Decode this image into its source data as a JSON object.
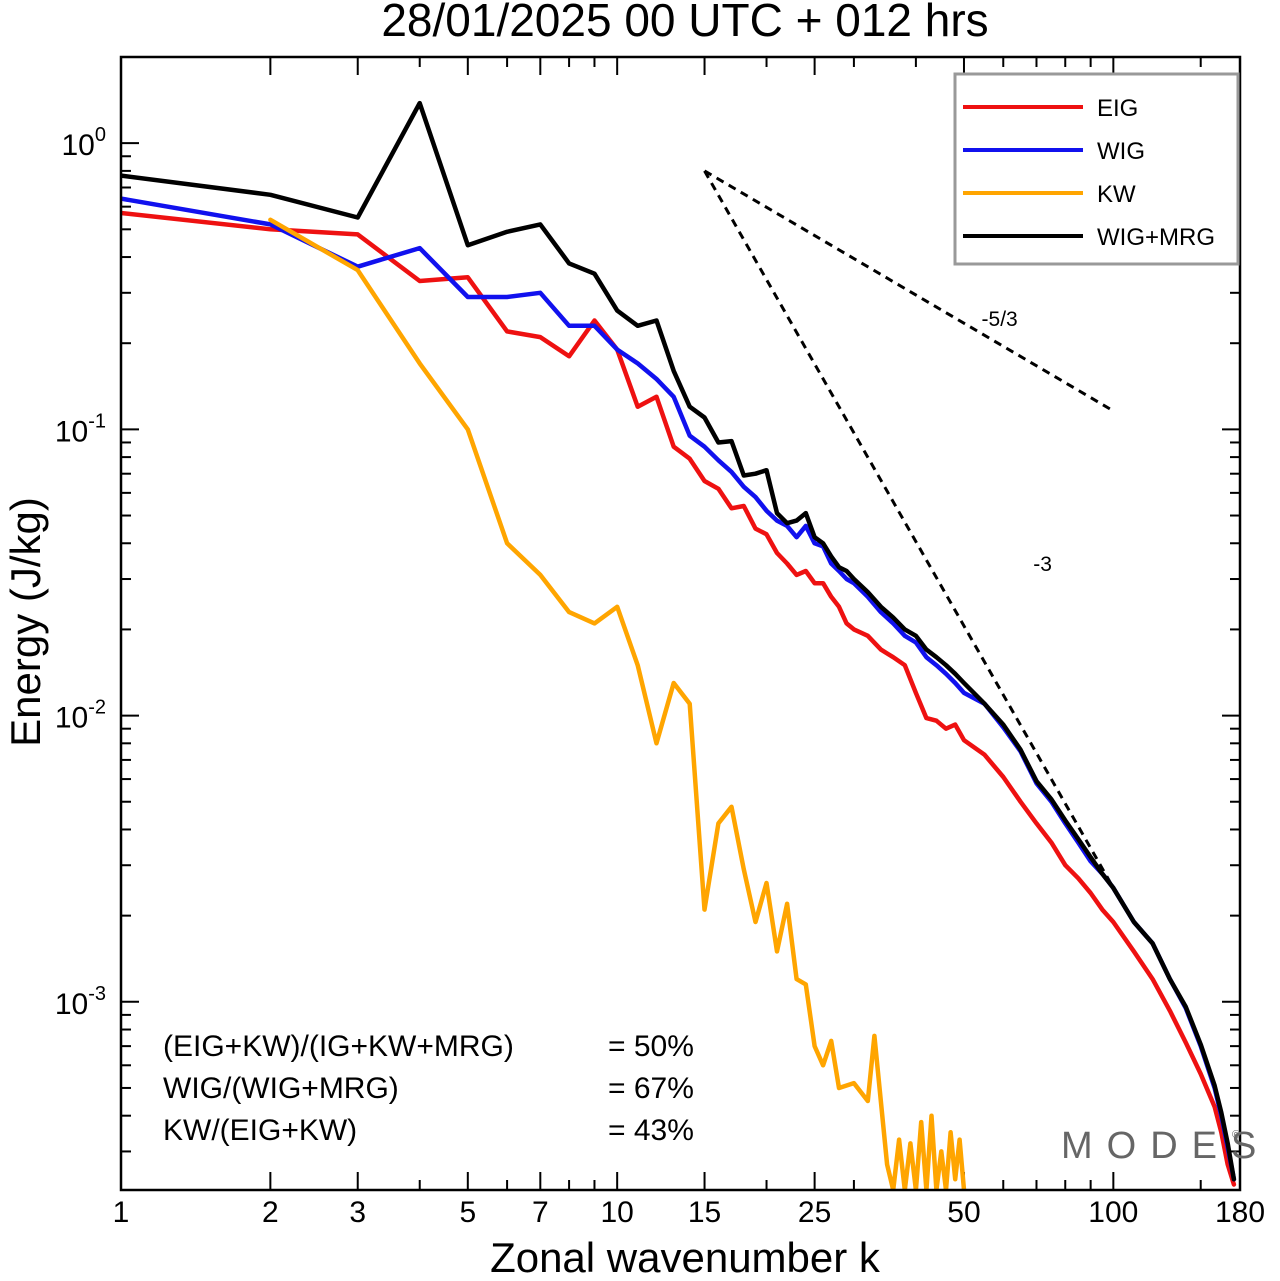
{
  "title": "28/01/2025  00 UTC  + 012 hrs",
  "watermark": "MODES",
  "watermark_mark": "©",
  "chart_data": {
    "type": "line",
    "x_scale": "log",
    "y_scale": "log",
    "xlabel": "Zonal wavenumber k",
    "ylabel": "Energy (J/kg)",
    "xlim": [
      1,
      180
    ],
    "ylim": [
      0.00022,
      2.0
    ],
    "x_ticks": [
      {
        "value": 1,
        "label": "1"
      },
      {
        "value": 2,
        "label": "2"
      },
      {
        "value": 3,
        "label": "3"
      },
      {
        "value": 5,
        "label": "5"
      },
      {
        "value": 7,
        "label": "7"
      },
      {
        "value": 10,
        "label": "10"
      },
      {
        "value": 15,
        "label": "15"
      },
      {
        "value": 25,
        "label": "25"
      },
      {
        "value": 50,
        "label": "50"
      },
      {
        "value": 100,
        "label": "100"
      },
      {
        "value": 180,
        "label": "180"
      }
    ],
    "y_ticks": [
      {
        "value": 1,
        "base": "10",
        "exp": "0"
      },
      {
        "value": 0.1,
        "base": "10",
        "exp": "-1"
      },
      {
        "value": 0.01,
        "base": "10",
        "exp": "-2"
      },
      {
        "value": 0.001,
        "base": "10",
        "exp": "-3"
      }
    ],
    "legend_position": "top-right",
    "series": [
      {
        "name": "EIG",
        "color": "#ee1111",
        "points": [
          [
            1,
            0.57
          ],
          [
            2,
            0.5
          ],
          [
            3,
            0.48
          ],
          [
            4,
            0.33
          ],
          [
            5,
            0.34
          ],
          [
            6,
            0.22
          ],
          [
            7,
            0.21
          ],
          [
            8,
            0.18
          ],
          [
            9,
            0.24
          ],
          [
            10,
            0.19
          ],
          [
            11,
            0.12
          ],
          [
            12,
            0.13
          ],
          [
            13,
            0.087
          ],
          [
            14,
            0.079
          ],
          [
            15,
            0.066
          ],
          [
            16,
            0.062
          ],
          [
            17,
            0.053
          ],
          [
            18,
            0.054
          ],
          [
            19,
            0.045
          ],
          [
            20,
            0.043
          ],
          [
            21,
            0.037
          ],
          [
            22,
            0.034
          ],
          [
            23,
            0.031
          ],
          [
            24,
            0.032
          ],
          [
            25,
            0.029
          ],
          [
            26,
            0.029
          ],
          [
            27,
            0.026
          ],
          [
            28,
            0.024
          ],
          [
            29,
            0.021
          ],
          [
            30,
            0.02
          ],
          [
            32,
            0.019
          ],
          [
            34,
            0.017
          ],
          [
            36,
            0.016
          ],
          [
            38,
            0.015
          ],
          [
            40,
            0.012
          ],
          [
            42,
            0.0098
          ],
          [
            44,
            0.0096
          ],
          [
            46,
            0.009
          ],
          [
            48,
            0.0093
          ],
          [
            50,
            0.0082
          ],
          [
            55,
            0.0073
          ],
          [
            60,
            0.0061
          ],
          [
            65,
            0.005
          ],
          [
            70,
            0.0042
          ],
          [
            75,
            0.0036
          ],
          [
            80,
            0.003
          ],
          [
            85,
            0.0027
          ],
          [
            90,
            0.0024
          ],
          [
            95,
            0.0021
          ],
          [
            100,
            0.0019
          ],
          [
            110,
            0.0015
          ],
          [
            120,
            0.0012
          ],
          [
            130,
            0.00093
          ],
          [
            140,
            0.00072
          ],
          [
            150,
            0.00056
          ],
          [
            160,
            0.00043
          ],
          [
            165,
            0.00035
          ],
          [
            170,
            0.00027
          ],
          [
            175,
            0.00023
          ]
        ]
      },
      {
        "name": "WIG",
        "color": "#1111ee",
        "points": [
          [
            1,
            0.64
          ],
          [
            2,
            0.52
          ],
          [
            3,
            0.37
          ],
          [
            4,
            0.43
          ],
          [
            5,
            0.29
          ],
          [
            6,
            0.29
          ],
          [
            7,
            0.3
          ],
          [
            8,
            0.23
          ],
          [
            9,
            0.23
          ],
          [
            10,
            0.19
          ],
          [
            11,
            0.17
          ],
          [
            12,
            0.15
          ],
          [
            13,
            0.13
          ],
          [
            14,
            0.095
          ],
          [
            15,
            0.087
          ],
          [
            16,
            0.078
          ],
          [
            17,
            0.071
          ],
          [
            18,
            0.063
          ],
          [
            19,
            0.058
          ],
          [
            20,
            0.052
          ],
          [
            21,
            0.048
          ],
          [
            22,
            0.046
          ],
          [
            23,
            0.042
          ],
          [
            24,
            0.046
          ],
          [
            25,
            0.04
          ],
          [
            26,
            0.039
          ],
          [
            27,
            0.034
          ],
          [
            28,
            0.032
          ],
          [
            29,
            0.03
          ],
          [
            30,
            0.029
          ],
          [
            32,
            0.026
          ],
          [
            34,
            0.023
          ],
          [
            36,
            0.021
          ],
          [
            38,
            0.019
          ],
          [
            40,
            0.018
          ],
          [
            42,
            0.016
          ],
          [
            44,
            0.015
          ],
          [
            46,
            0.014
          ],
          [
            48,
            0.013
          ],
          [
            50,
            0.012
          ],
          [
            55,
            0.011
          ],
          [
            60,
            0.0091
          ],
          [
            65,
            0.0075
          ],
          [
            70,
            0.0058
          ],
          [
            75,
            0.005
          ],
          [
            80,
            0.0042
          ],
          [
            85,
            0.0036
          ],
          [
            90,
            0.0031
          ],
          [
            95,
            0.0028
          ],
          [
            100,
            0.0025
          ],
          [
            110,
            0.0019
          ],
          [
            120,
            0.0016
          ],
          [
            130,
            0.0012
          ],
          [
            140,
            0.00095
          ],
          [
            150,
            0.0007
          ],
          [
            160,
            0.0005
          ],
          [
            165,
            0.0004
          ],
          [
            170,
            0.00031
          ],
          [
            175,
            0.00024
          ]
        ]
      },
      {
        "name": "KW",
        "color": "#ffa500",
        "points": [
          [
            2,
            0.54
          ],
          [
            3,
            0.36
          ],
          [
            4,
            0.17
          ],
          [
            5,
            0.1
          ],
          [
            6,
            0.04
          ],
          [
            7,
            0.031
          ],
          [
            8,
            0.023
          ],
          [
            9,
            0.021
          ],
          [
            10,
            0.024
          ],
          [
            11,
            0.015
          ],
          [
            12,
            0.008
          ],
          [
            13,
            0.013
          ],
          [
            14,
            0.011
          ],
          [
            15,
            0.0021
          ],
          [
            16,
            0.0042
          ],
          [
            17,
            0.0048
          ],
          [
            18,
            0.0029
          ],
          [
            19,
            0.0019
          ],
          [
            20,
            0.0026
          ],
          [
            21,
            0.0015
          ],
          [
            22,
            0.0022
          ],
          [
            23,
            0.0012
          ],
          [
            24,
            0.00115
          ],
          [
            25,
            0.0007
          ],
          [
            26,
            0.0006
          ],
          [
            27,
            0.00073
          ],
          [
            28,
            0.0005
          ],
          [
            30,
            0.00052
          ],
          [
            32,
            0.00045
          ],
          [
            33,
            0.00076
          ],
          [
            35,
            0.00027
          ],
          [
            36,
            0.00022
          ],
          [
            37,
            0.00033
          ],
          [
            38,
            0.00022
          ],
          [
            39,
            0.00032
          ],
          [
            40,
            0.00022
          ],
          [
            41,
            0.00038
          ],
          [
            42,
            0.00022
          ],
          [
            43,
            0.0004
          ],
          [
            44,
            0.00022
          ],
          [
            45,
            0.0003
          ],
          [
            46,
            0.00022
          ],
          [
            47,
            0.00035
          ],
          [
            48,
            0.00024
          ],
          [
            49,
            0.00033
          ],
          [
            50,
            0.00022
          ]
        ]
      },
      {
        "name": "WIG+MRG",
        "color": "#000000",
        "points": [
          [
            1,
            0.77
          ],
          [
            2,
            0.66
          ],
          [
            3,
            0.55
          ],
          [
            4,
            1.38
          ],
          [
            5,
            0.44
          ],
          [
            6,
            0.49
          ],
          [
            7,
            0.52
          ],
          [
            8,
            0.38
          ],
          [
            9,
            0.35
          ],
          [
            10,
            0.26
          ],
          [
            11,
            0.23
          ],
          [
            12,
            0.24
          ],
          [
            13,
            0.16
          ],
          [
            14,
            0.12
          ],
          [
            15,
            0.11
          ],
          [
            16,
            0.09
          ],
          [
            17,
            0.091
          ],
          [
            18,
            0.069
          ],
          [
            19,
            0.07
          ],
          [
            20,
            0.072
          ],
          [
            21,
            0.051
          ],
          [
            22,
            0.047
          ],
          [
            23,
            0.048
          ],
          [
            24,
            0.051
          ],
          [
            25,
            0.042
          ],
          [
            26,
            0.04
          ],
          [
            27,
            0.036
          ],
          [
            28,
            0.033
          ],
          [
            29,
            0.032
          ],
          [
            30,
            0.03
          ],
          [
            32,
            0.027
          ],
          [
            34,
            0.024
          ],
          [
            36,
            0.022
          ],
          [
            38,
            0.02
          ],
          [
            40,
            0.019
          ],
          [
            42,
            0.017
          ],
          [
            44,
            0.016
          ],
          [
            46,
            0.015
          ],
          [
            48,
            0.014
          ],
          [
            50,
            0.013
          ],
          [
            55,
            0.011
          ],
          [
            60,
            0.0093
          ],
          [
            65,
            0.0076
          ],
          [
            70,
            0.0059
          ],
          [
            75,
            0.0051
          ],
          [
            80,
            0.0043
          ],
          [
            85,
            0.0037
          ],
          [
            90,
            0.0032
          ],
          [
            95,
            0.0028
          ],
          [
            100,
            0.0025
          ],
          [
            110,
            0.0019
          ],
          [
            120,
            0.0016
          ],
          [
            130,
            0.0012
          ],
          [
            140,
            0.00096
          ],
          [
            150,
            0.00071
          ],
          [
            160,
            0.00051
          ],
          [
            165,
            0.00041
          ],
          [
            170,
            0.00032
          ],
          [
            175,
            0.00024
          ]
        ]
      }
    ],
    "reference_lines": [
      {
        "label": "-5/3",
        "points": [
          [
            15,
            0.8
          ],
          [
            100,
            0.116
          ]
        ],
        "label_at": [
          59,
          0.23
        ]
      },
      {
        "label": "-3",
        "points": [
          [
            15,
            0.8
          ],
          [
            100,
            0.0025
          ]
        ],
        "label_at": [
          72,
          0.032
        ]
      }
    ],
    "annotations": [
      {
        "label": "(EIG+KW)/(IG+KW+MRG)",
        "value": "= 50%"
      },
      {
        "label": "WIG/(WIG+MRG)",
        "value": "= 67%"
      },
      {
        "label": "KW/(EIG+KW)",
        "value": "= 43%"
      }
    ]
  }
}
